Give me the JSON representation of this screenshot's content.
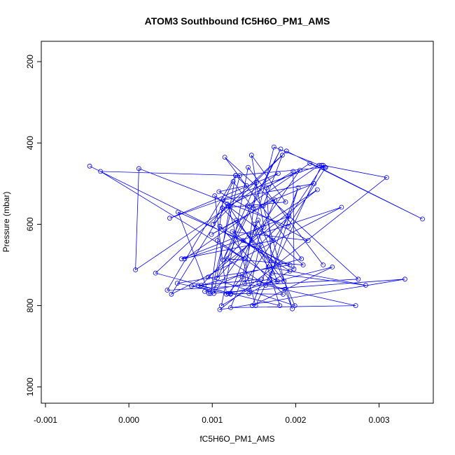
{
  "chart_data": {
    "type": "scatter",
    "title": "ATOM3 Southbound fC5H6O_PM1_AMS",
    "xlabel": "fC5H6O_PM1_AMS",
    "ylabel": "Pressure (mbar)",
    "xlim": [
      -0.00105,
      0.00365
    ],
    "ylim": [
      1040,
      150
    ],
    "y_reversed": true,
    "x_ticks": [
      -0.001,
      0.0,
      0.001,
      0.002,
      0.003
    ],
    "x_tick_labels": [
      "-0.001",
      "0.000",
      "0.001",
      "0.002",
      "0.003"
    ],
    "y_ticks": [
      200,
      400,
      600,
      800,
      1000
    ],
    "y_tick_labels": [
      "200",
      "400",
      "600",
      "800",
      "1000"
    ],
    "grid": false,
    "series": [
      {
        "color": "#0000ff",
        "style": "points-and-lines",
        "x": [
          -0.00047,
          0.00193,
          0.00058,
          0.00122,
          0.00075,
          0.00159,
          0.00083,
          0.00181,
          0.00142,
          0.00217,
          0.00352,
          0.00189,
          0.00032,
          0.00122,
          0.00155,
          0.00199,
          0.00095,
          0.00226,
          0.00144,
          0.00087,
          0.00207,
          0.00115,
          0.00275,
          0.00046,
          0.00128,
          0.00102,
          0.00205,
          0.00119,
          0.00152,
          0.00231,
          0.00236,
          0.00191,
          0.00012,
          8e-05,
          0.00179,
          0.00049,
          0.00228,
          0.00067,
          0.00255,
          0.00051,
          0.00118,
          0.00167,
          0.00284,
          0.00172,
          0.00165,
          0.00197,
          0.00198,
          0.00137,
          0.00059,
          0.00096,
          0.00331,
          0.00109,
          0.00309,
          0.00233,
          0.00139,
          0.00153,
          0.00113,
          0.00182,
          0.00106,
          0.00162,
          0.00147,
          0.00188,
          0.00112,
          0.00177,
          0.00124,
          0.00215,
          0.00108,
          0.00141,
          0.00128,
          0.00235,
          0.00174,
          0.00136,
          0.00119,
          0.00185,
          0.00109,
          0.00193,
          0.00144,
          0.00157,
          0.00192,
          0.00063,
          0.00173,
          0.00103,
          0.00117,
          0.00244,
          0.00148,
          0.00203,
          0.00169,
          0.00091,
          0.00132,
          0.00187,
          0.00196,
          0.00161,
          0.00184,
          0.00101,
          0.00125,
          0.00149,
          0.00222,
          0.00113,
          0.00098,
          0.00133,
          -0.00034,
          0.00138,
          0.00106,
          0.00178,
          0.00151,
          0.00209,
          0.00118,
          0.00164,
          0.00272,
          0.00122,
          0.00175,
          0.00099,
          0.00129,
          0.00186,
          0.00156,
          0.00111,
          0.00143,
          0.00233
        ],
        "y": [
          457,
          700,
          745,
          772,
          752,
          735,
          750,
          800,
          555,
          450,
          587,
          420,
          720,
          770,
          590,
          800,
          730,
          515,
          625,
          750,
          685,
          435,
          735,
          762,
          480,
          770,
          467,
          555,
          800,
          455,
          460,
          605,
          463,
          712,
          475,
          585,
          455,
          685,
          558,
          772,
          550,
          705,
          750,
          720,
          510,
          470,
          710,
          640,
          570,
          770,
          735,
          810,
          485,
          455,
          745,
          497,
          688,
          415,
          732,
          607,
          430,
          545,
          560,
          700,
          618,
          640,
          520,
          505,
          480,
          460,
          410,
          730,
          770,
          772,
          605,
          715,
          770,
          650,
          580,
          685,
          640,
          530,
          772,
          705,
          800,
          510,
          735,
          765,
          725,
          760,
          808,
          555,
          430,
          600,
          495,
          560,
          500,
          540,
          770,
          480,
          470,
          685,
          640,
          740,
          600,
          700,
          685,
          750,
          800,
          805,
          540,
          625,
          590,
          740,
          745,
          800,
          460,
          700
        ]
      }
    ]
  }
}
